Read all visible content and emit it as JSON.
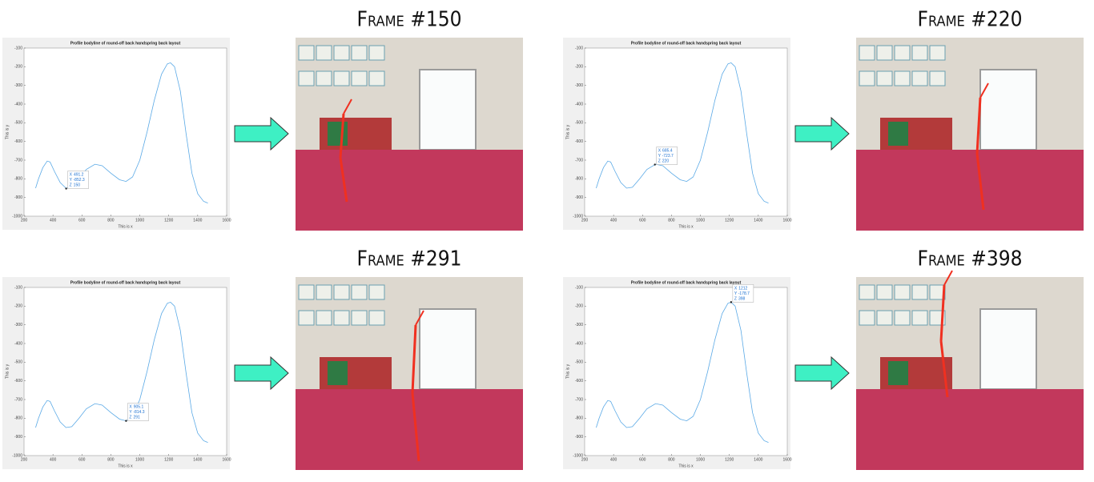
{
  "frames": [
    "Frame #150",
    "Frame #220",
    "Frame #291",
    "Frame #398"
  ],
  "chart_data": [
    {
      "type": "line",
      "title": "Profile bodyline of round-off back handspring back layout",
      "x_label": "This is x",
      "y_label": "This is y",
      "x": [
        280,
        300,
        330,
        360,
        380,
        410,
        450,
        490,
        530,
        580,
        630,
        690,
        740,
        800,
        860,
        905,
        950,
        1000,
        1050,
        1100,
        1150,
        1190,
        1212,
        1240,
        1280,
        1320,
        1360,
        1400,
        1440,
        1470
      ],
      "values": [
        -850,
        -800,
        -740,
        -705,
        -710,
        -760,
        -820,
        -850,
        -845,
        -800,
        -750,
        -722,
        -730,
        -770,
        -805,
        -814,
        -790,
        -700,
        -550,
        -380,
        -240,
        -185,
        -179,
        -200,
        -330,
        -560,
        -770,
        -880,
        -920,
        -930
      ],
      "color": "#5aa9e6",
      "xlim": [
        200,
        1600
      ],
      "ylim": [
        -1000,
        -100
      ],
      "xticks": [
        200,
        400,
        600,
        800,
        1000,
        1200,
        1400,
        1600
      ],
      "yticks": [
        -1000,
        -900,
        -800,
        -700,
        -600,
        -500,
        -400,
        -300,
        -200,
        -100
      ],
      "datatip": [
        {
          "label": "X",
          "value": 491.2
        },
        {
          "label": "Y",
          "value": -852.3
        },
        {
          "label": "Z",
          "value": 150
        }
      ]
    },
    {
      "type": "line",
      "title": "Profile bodyline of round-off back handspring back layout",
      "x_label": "This is x",
      "y_label": "This is y",
      "x": [
        280,
        300,
        330,
        360,
        380,
        410,
        450,
        490,
        530,
        580,
        630,
        690,
        740,
        800,
        860,
        905,
        950,
        1000,
        1050,
        1100,
        1150,
        1190,
        1212,
        1240,
        1280,
        1320,
        1360,
        1400,
        1440,
        1470
      ],
      "values": [
        -850,
        -800,
        -740,
        -705,
        -710,
        -760,
        -820,
        -850,
        -845,
        -800,
        -750,
        -722,
        -730,
        -770,
        -805,
        -814,
        -790,
        -700,
        -550,
        -380,
        -240,
        -185,
        -179,
        -200,
        -330,
        -560,
        -770,
        -880,
        -920,
        -930
      ],
      "color": "#5aa9e6",
      "xlim": [
        200,
        1600
      ],
      "ylim": [
        -1000,
        -100
      ],
      "xticks": [
        200,
        400,
        600,
        800,
        1000,
        1200,
        1400,
        1600
      ],
      "yticks": [
        -1000,
        -900,
        -800,
        -700,
        -600,
        -500,
        -400,
        -300,
        -200,
        -100
      ],
      "datatip": [
        {
          "label": "X",
          "value": 685.4
        },
        {
          "label": "Y",
          "value": -723.7
        },
        {
          "label": "Z",
          "value": 220
        }
      ]
    },
    {
      "type": "line",
      "title": "Profile bodyline of round-off back handspring back layout",
      "x_label": "This is x",
      "y_label": "This is y",
      "x": [
        280,
        300,
        330,
        360,
        380,
        410,
        450,
        490,
        530,
        580,
        630,
        690,
        740,
        800,
        860,
        905,
        950,
        1000,
        1050,
        1100,
        1150,
        1190,
        1212,
        1240,
        1280,
        1320,
        1360,
        1400,
        1440,
        1470
      ],
      "values": [
        -850,
        -800,
        -740,
        -705,
        -710,
        -760,
        -820,
        -850,
        -845,
        -800,
        -750,
        -722,
        -730,
        -770,
        -805,
        -814,
        -790,
        -700,
        -550,
        -380,
        -240,
        -185,
        -179,
        -200,
        -330,
        -560,
        -770,
        -880,
        -920,
        -930
      ],
      "color": "#5aa9e6",
      "xlim": [
        200,
        1600
      ],
      "ylim": [
        -1000,
        -100
      ],
      "xticks": [
        200,
        400,
        600,
        800,
        1000,
        1200,
        1400,
        1600
      ],
      "yticks": [
        -1000,
        -900,
        -800,
        -700,
        -600,
        -500,
        -400,
        -300,
        -200,
        -100
      ],
      "datatip": [
        {
          "label": "X",
          "value": 905.1
        },
        {
          "label": "Y",
          "value": -814.3
        },
        {
          "label": "Z",
          "value": 291
        }
      ]
    },
    {
      "type": "line",
      "title": "Profile bodyline of round-off back handspring back layout",
      "x_label": "This is x",
      "y_label": "This is y",
      "x": [
        280,
        300,
        330,
        360,
        380,
        410,
        450,
        490,
        530,
        580,
        630,
        690,
        740,
        800,
        860,
        905,
        950,
        1000,
        1050,
        1100,
        1150,
        1190,
        1212,
        1240,
        1280,
        1320,
        1360,
        1400,
        1440,
        1470
      ],
      "values": [
        -850,
        -800,
        -740,
        -705,
        -710,
        -760,
        -820,
        -850,
        -845,
        -800,
        -750,
        -722,
        -730,
        -770,
        -805,
        -814,
        -790,
        -700,
        -550,
        -380,
        -240,
        -185,
        -179,
        -200,
        -330,
        -560,
        -770,
        -880,
        -920,
        -930
      ],
      "color": "#5aa9e6",
      "xlim": [
        200,
        1600
      ],
      "ylim": [
        -1000,
        -100
      ],
      "xticks": [
        200,
        400,
        600,
        800,
        1000,
        1200,
        1400,
        1600
      ],
      "yticks": [
        -1000,
        -900,
        -800,
        -700,
        -600,
        -500,
        -400,
        -300,
        -200,
        -100
      ],
      "datatip": [
        {
          "label": "X",
          "value": 1212
        },
        {
          "label": "Y",
          "value": -178.7
        },
        {
          "label": "Z",
          "value": 398
        }
      ]
    }
  ]
}
